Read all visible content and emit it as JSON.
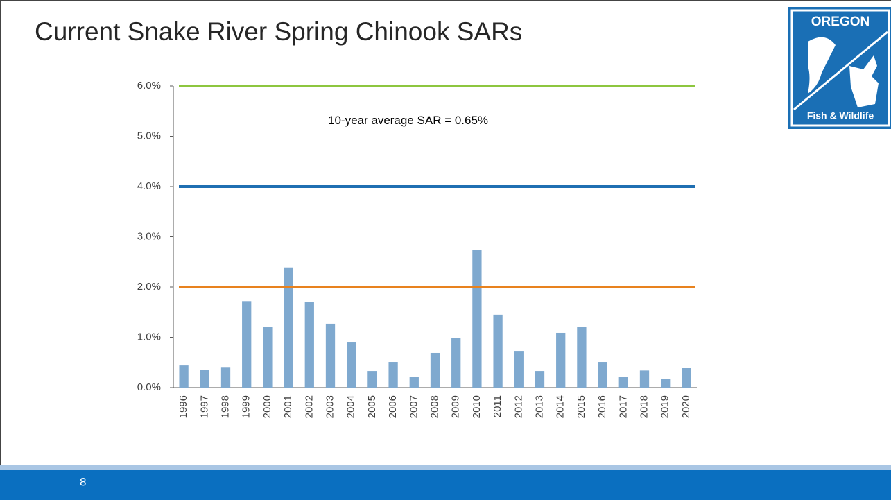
{
  "header": {
    "title": "Current Snake River Spring Chinook SARs",
    "logo_top": "OREGON",
    "logo_bottom": "Fish & Wildlife"
  },
  "footer": {
    "page_number": "8"
  },
  "chart_data": {
    "type": "bar",
    "categories": [
      "1996",
      "1997",
      "1998",
      "1999",
      "2000",
      "2001",
      "2002",
      "2003",
      "2004",
      "2005",
      "2006",
      "2007",
      "2008",
      "2009",
      "2010",
      "2011",
      "2012",
      "2013",
      "2014",
      "2015",
      "2016",
      "2017",
      "2018",
      "2019",
      "2020"
    ],
    "values": [
      0.44,
      0.35,
      0.41,
      1.72,
      1.2,
      2.39,
      1.7,
      1.27,
      0.91,
      0.33,
      0.51,
      0.22,
      0.69,
      0.98,
      2.74,
      1.45,
      0.73,
      0.33,
      1.09,
      1.2,
      0.51,
      0.22,
      0.34,
      0.17,
      0.4
    ],
    "color": "#7fa9cf",
    "ylim": [
      0,
      6
    ],
    "yticks": [
      {
        "value": 0,
        "label": "0.0%"
      },
      {
        "value": 1,
        "label": "1.0%"
      },
      {
        "value": 2,
        "label": "2.0%"
      },
      {
        "value": 3,
        "label": "3.0%"
      },
      {
        "value": 4,
        "label": "4.0%"
      },
      {
        "value": 5,
        "label": "5.0%"
      },
      {
        "value": 6,
        "label": "6.0%"
      }
    ],
    "reference_lines": [
      {
        "value": 6,
        "color": "#8dc63f"
      },
      {
        "value": 4,
        "color": "#1f6fb2"
      },
      {
        "value": 2,
        "color": "#e8821e"
      }
    ],
    "annotation": "10-year average SAR = 0.65%"
  }
}
